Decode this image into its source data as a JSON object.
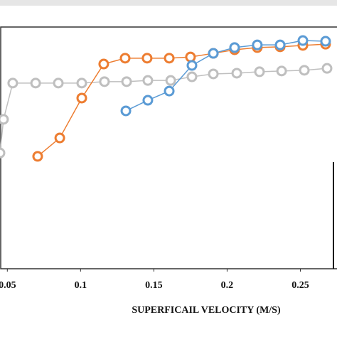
{
  "chart_data": {
    "type": "line",
    "x_label": "SUPERFICAIL VELOCITY (M/S)",
    "xlim": [
      0.045,
      0.275
    ],
    "xticks": [
      {
        "value": 0.05,
        "label": "0.05"
      },
      0.1,
      0.15,
      0.2,
      0.25
    ],
    "ylim": [
      0,
      100
    ],
    "series": [
      {
        "color": "#bfbfbf",
        "x": [
          0.045,
          0.0474,
          0.0537,
          0.0693,
          0.0848,
          0.1008,
          0.1163,
          0.1314,
          0.1459,
          0.1615,
          0.176,
          0.1906,
          0.2066,
          0.2221,
          0.2372,
          0.2527,
          0.2682
        ],
        "values": [
          47.9,
          61.8,
          76.8,
          76.8,
          76.8,
          76.8,
          77.4,
          77.4,
          77.9,
          77.9,
          79.4,
          80.6,
          80.9,
          81.5,
          81.8,
          82.1,
          82.9
        ]
      },
      {
        "color": "#ed7d31",
        "x": [
          0.0707,
          0.0858,
          0.1008,
          0.1158,
          0.1304,
          0.1454,
          0.1605,
          0.175,
          0.1906,
          0.2051,
          0.2206,
          0.2362,
          0.2517,
          0.2672
        ],
        "values": [
          46.5,
          54.1,
          70.6,
          84.7,
          87.1,
          87.1,
          87.1,
          87.6,
          89.1,
          90.6,
          91.5,
          91.8,
          92.4,
          92.9
        ]
      },
      {
        "color": "#5b9bd5",
        "x": [
          0.1309,
          0.1459,
          0.1605,
          0.176,
          0.1906,
          0.2051,
          0.2206,
          0.2362,
          0.2517,
          0.2672
        ],
        "values": [
          65.3,
          69.7,
          73.5,
          84.1,
          89.1,
          91.5,
          92.6,
          92.6,
          94.4,
          94.1
        ]
      }
    ]
  }
}
